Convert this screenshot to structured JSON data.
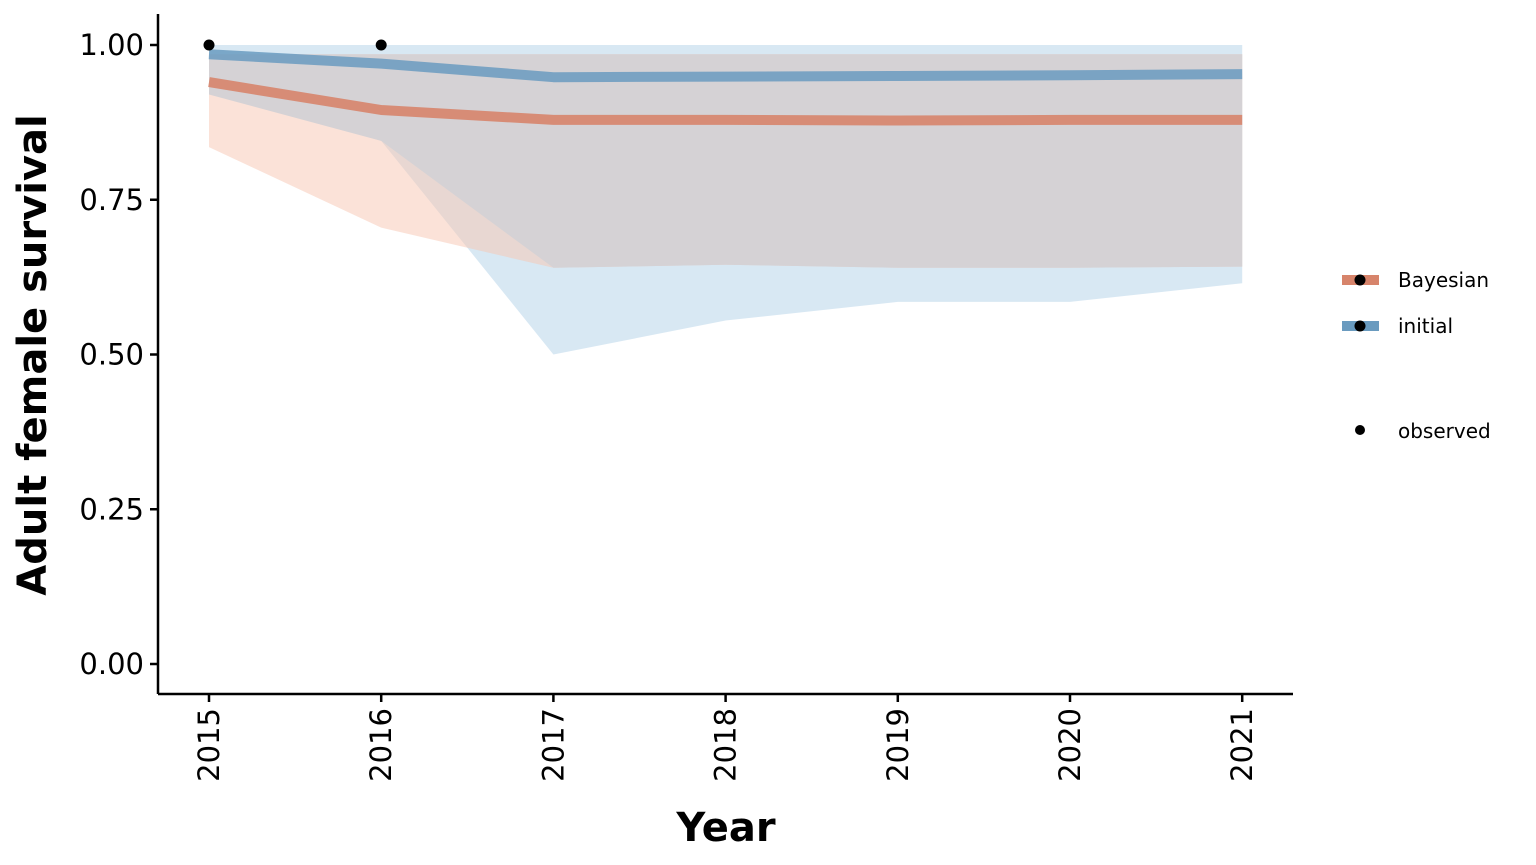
{
  "chart_data": {
    "type": "line",
    "title": "",
    "xlabel": "Year",
    "ylabel": "Adult female survival",
    "x": [
      2015,
      2016,
      2017,
      2018,
      2019,
      2020,
      2021
    ],
    "xticks": [
      "2015",
      "2016",
      "2017",
      "2018",
      "2019",
      "2020",
      "2021"
    ],
    "ylim": [
      0,
      1
    ],
    "yticks": [
      "0.00",
      "0.25",
      "0.50",
      "0.75",
      "1.00"
    ],
    "yticks_values": [
      0,
      0.25,
      0.5,
      0.75,
      1.0
    ],
    "grid": false,
    "legend_position": "right",
    "series": [
      {
        "name": "Bayesian",
        "color": "#d7846b",
        "ribbon_color": "#f7c6b2",
        "values": [
          0.94,
          0.895,
          0.879,
          0.879,
          0.878,
          0.879,
          0.879
        ],
        "inner_upper": [
          0.985,
          0.985,
          0.985,
          0.985,
          0.985,
          0.985,
          0.985
        ],
        "inner_lower": [
          0.92,
          0.845,
          0.64,
          0.645,
          0.64,
          0.64,
          0.642
        ],
        "outer_upper": [
          0.985,
          0.985,
          0.985,
          0.985,
          0.985,
          0.985,
          0.985
        ],
        "outer_lower": [
          0.835,
          0.705,
          0.64,
          0.645,
          0.64,
          0.64,
          0.642
        ]
      },
      {
        "name": "initial",
        "color": "#6a9bbf",
        "ribbon_color": "#b8d6ea",
        "values": [
          0.985,
          0.97,
          0.948,
          0.949,
          0.95,
          0.951,
          0.953
        ],
        "lower": [
          0.93,
          0.845,
          0.5,
          0.555,
          0.585,
          0.585,
          0.615
        ],
        "upper": [
          1.0,
          1.0,
          1.0,
          1.0,
          1.0,
          1.0,
          1.0
        ]
      }
    ],
    "observed": {
      "name": "observed",
      "color": "#000000",
      "x": [
        2015,
        2016
      ],
      "y": [
        1.0,
        1.0
      ]
    },
    "overlap_color": "#d5d2d5"
  }
}
